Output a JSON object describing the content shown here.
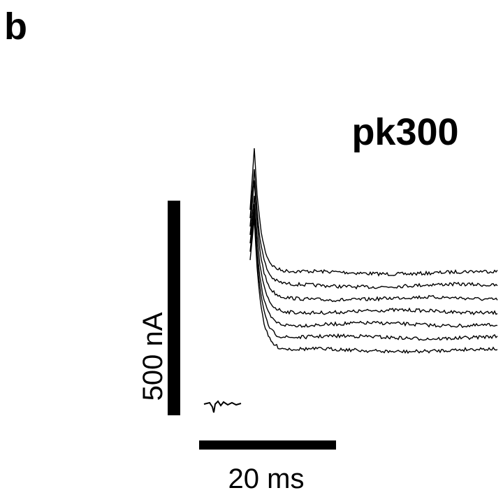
{
  "panel": {
    "label": "b",
    "title": "pk300"
  },
  "scale_bars": {
    "vertical": "500 nA",
    "horizontal": "20 ms"
  }
}
